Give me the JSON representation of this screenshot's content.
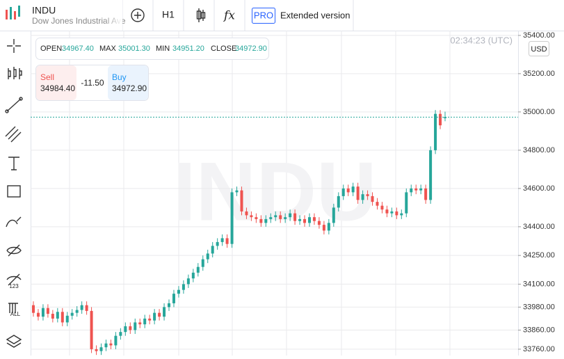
{
  "header": {
    "symbol": "INDU",
    "name": "Dow Jones Industrial Ave",
    "interval": "H1",
    "pro": "PRO",
    "extended": "Extended version"
  },
  "ohlc_box": {
    "open_label": "OPEN",
    "open": "34967.40",
    "max_label": "MAX",
    "max": "35001.30",
    "min_label": "MIN",
    "min": "34951.20",
    "close_label": "CLOSE",
    "close": "34972.90"
  },
  "trade": {
    "sell_label": "Sell",
    "sell": "34984.40",
    "spread": "-11.50",
    "buy_label": "Buy",
    "buy": "34972.90"
  },
  "chart_data": {
    "type": "candlestick",
    "time": "02:34:23 (UTC)",
    "currency": "USD",
    "up_color": "#26a69a",
    "down_color": "#ef5350",
    "grid": true,
    "ylim": [
      33727,
      35425
    ],
    "yticks": [
      {
        "value": 33760,
        "label": "33760.00"
      },
      {
        "value": 33860,
        "label": "33860.00"
      },
      {
        "value": 33980,
        "label": "33980.00"
      },
      {
        "value": 34100,
        "label": "34100.00"
      },
      {
        "value": 34250,
        "label": "34250.00"
      },
      {
        "value": 34400,
        "label": "34400.00"
      },
      {
        "value": 34600,
        "label": "34600.00"
      },
      {
        "value": 34800,
        "label": "34800.00"
      },
      {
        "value": 35000,
        "label": "35000.00"
      },
      {
        "value": 35200,
        "label": "35200.00"
      },
      {
        "value": 35400,
        "label": "35400.00"
      }
    ],
    "open": [
      33990,
      33950,
      33930,
      33975,
      33945,
      33920,
      33955,
      33900,
      33935,
      33950,
      33965,
      33990,
      33960,
      33760,
      33750,
      33770,
      33790,
      33780,
      33830,
      33850,
      33880,
      33860,
      33900,
      33890,
      33920,
      33910,
      33950,
      33930,
      33980,
      34000,
      34050,
      34070,
      34100,
      34130,
      34160,
      34190,
      34230,
      34260,
      34300,
      34320,
      34340,
      34310,
      34580,
      34590,
      34480,
      34460,
      34450,
      34440,
      34420,
      34440,
      34450,
      34460,
      34440,
      34450,
      34470,
      34430,
      34440,
      34420,
      34450,
      34430,
      34410,
      34380,
      34420,
      34500,
      34560,
      34600,
      34580,
      34610,
      34540,
      34570,
      34560,
      34530,
      34510,
      34490,
      34470,
      34480,
      34460,
      34470,
      34580,
      34600,
      34590,
      34600,
      34540,
      34800,
      34990,
      34967.4
    ],
    "high": [
      34010,
      33970,
      33995,
      33995,
      33965,
      33975,
      33975,
      33955,
      33970,
      33985,
      34010,
      34010,
      33980,
      33780,
      33790,
      33810,
      33810,
      33850,
      33870,
      33900,
      33900,
      33920,
      33920,
      33940,
      33940,
      33970,
      33970,
      34000,
      34020,
      34070,
      34090,
      34120,
      34150,
      34180,
      34210,
      34250,
      34280,
      34320,
      34340,
      34360,
      34360,
      34600,
      34610,
      34610,
      34500,
      34480,
      34470,
      34460,
      34460,
      34470,
      34480,
      34480,
      34470,
      34490,
      34490,
      34460,
      34460,
      34470,
      34470,
      34450,
      34430,
      34440,
      34520,
      34580,
      34620,
      34620,
      34630,
      34630,
      34590,
      34590,
      34580,
      34550,
      34530,
      34510,
      34500,
      34500,
      34490,
      34600,
      34620,
      34620,
      34620,
      34620,
      34820,
      35010,
      35010,
      35001.3
    ],
    "low": [
      33930,
      33910,
      33910,
      33925,
      33900,
      33900,
      33880,
      33880,
      33915,
      33930,
      33945,
      33940,
      33740,
      33730,
      33730,
      33750,
      33760,
      33760,
      33810,
      33830,
      33840,
      33840,
      33870,
      33870,
      33890,
      33890,
      33910,
      33910,
      33960,
      33980,
      34030,
      34050,
      34080,
      34110,
      34140,
      34170,
      34210,
      34240,
      34280,
      34300,
      34290,
      34290,
      34560,
      34460,
      34440,
      34430,
      34420,
      34400,
      34400,
      34420,
      34430,
      34420,
      34420,
      34430,
      34410,
      34410,
      34400,
      34400,
      34410,
      34390,
      34360,
      34360,
      34400,
      34480,
      34540,
      34560,
      34560,
      34520,
      34520,
      34540,
      34510,
      34490,
      34470,
      34450,
      34450,
      34440,
      34440,
      34450,
      34560,
      34570,
      34570,
      34520,
      34520,
      34780,
      34910,
      34951.2
    ],
    "close": [
      33950,
      33930,
      33975,
      33945,
      33920,
      33955,
      33900,
      33935,
      33950,
      33965,
      33990,
      33960,
      33760,
      33750,
      33770,
      33790,
      33780,
      33830,
      33850,
      33880,
      33860,
      33900,
      33890,
      33920,
      33910,
      33950,
      33930,
      33980,
      34000,
      34050,
      34070,
      34100,
      34130,
      34160,
      34190,
      34230,
      34260,
      34300,
      34320,
      34340,
      34310,
      34580,
      34590,
      34480,
      34460,
      34450,
      34440,
      34420,
      34440,
      34450,
      34460,
      34440,
      34450,
      34470,
      34430,
      34440,
      34420,
      34450,
      34430,
      34410,
      34380,
      34420,
      34500,
      34560,
      34600,
      34580,
      34610,
      34540,
      34570,
      34560,
      34530,
      34510,
      34490,
      34470,
      34480,
      34460,
      34470,
      34580,
      34600,
      34590,
      34600,
      34540,
      34800,
      34990,
      34930,
      34972.9
    ]
  }
}
